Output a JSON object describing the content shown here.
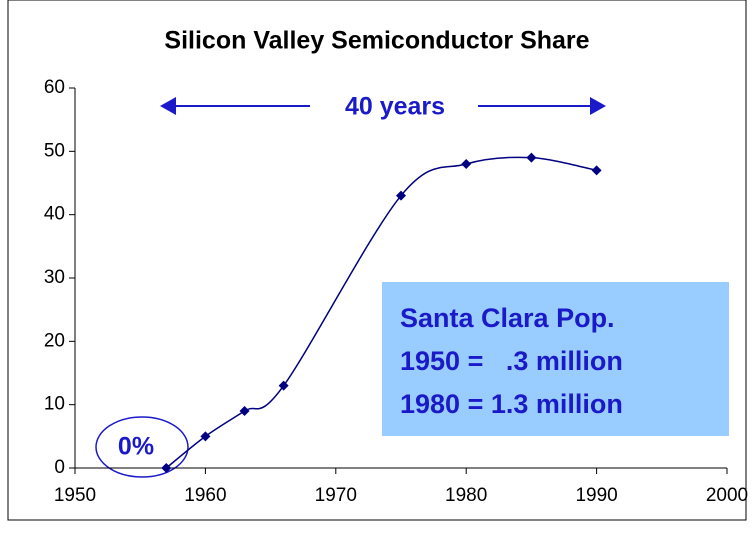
{
  "chart_data": {
    "type": "line",
    "title": "Silicon Valley Semiconductor Share",
    "x": [
      1957,
      1960,
      1963,
      1966,
      1975,
      1980,
      1985,
      1990
    ],
    "series": [
      {
        "color": "#000080",
        "values": [
          0,
          5,
          9,
          13,
          43,
          48,
          49,
          47
        ]
      }
    ],
    "xlim": [
      1950,
      2000
    ],
    "xticks": [
      1950,
      1960,
      1970,
      1980,
      1990,
      2000
    ],
    "ylim": [
      0,
      60
    ],
    "yticks": [
      0,
      10,
      20,
      30,
      40,
      50,
      60
    ],
    "annotations": [
      "40 years",
      "0%"
    ],
    "note_box": [
      "Santa Clara Pop.",
      "1950 =   .3 million",
      "1980 = 1.3 million"
    ]
  }
}
